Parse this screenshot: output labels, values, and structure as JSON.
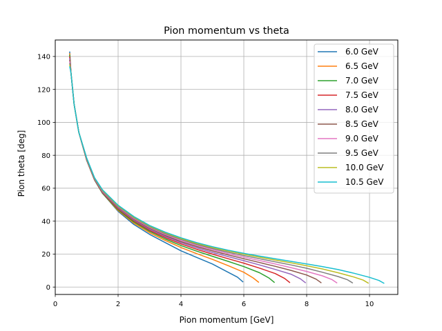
{
  "chart_data": {
    "type": "line",
    "title": "Pion momentum vs theta",
    "xlabel": "Pion momentum [GeV]",
    "ylabel": "Pion theta [deg]",
    "xlim": [
      0,
      10.9
    ],
    "ylim": [
      -4.5,
      150
    ],
    "xticks": [
      0,
      2,
      4,
      6,
      8,
      10
    ],
    "yticks": [
      0,
      20,
      40,
      60,
      80,
      100,
      120,
      140
    ],
    "grid": true,
    "legend_position": "top-right",
    "series": [
      {
        "name": "6.0 GeV",
        "color": "#1f77b4",
        "x": [
          0.46,
          0.5,
          0.6,
          0.75,
          1.0,
          1.25,
          1.5,
          2.0,
          2.5,
          3.0,
          3.5,
          4.0,
          4.5,
          5.0,
          5.5,
          5.8,
          5.98
        ],
        "y": [
          143,
          130,
          111,
          94,
          77,
          65,
          57,
          46,
          38,
          32,
          27,
          22,
          18,
          14,
          9,
          6,
          3
        ]
      },
      {
        "name": "6.5 GeV",
        "color": "#ff7f0e",
        "x": [
          0.46,
          0.5,
          0.6,
          0.75,
          1.0,
          1.25,
          1.5,
          2.0,
          2.5,
          3.0,
          3.5,
          4.0,
          4.5,
          5.0,
          5.5,
          6.0,
          6.3,
          6.48
        ],
        "y": [
          142,
          130,
          111,
          94,
          77,
          65,
          57,
          46.5,
          38.8,
          33,
          28.3,
          24,
          20.3,
          16.8,
          13,
          9,
          5.5,
          2.8
        ]
      },
      {
        "name": "7.0 GeV",
        "color": "#2ca02c",
        "x": [
          0.46,
          0.5,
          0.6,
          0.75,
          1.0,
          1.25,
          1.5,
          2.0,
          2.5,
          3.0,
          3.5,
          4.0,
          4.5,
          5.0,
          5.5,
          6.0,
          6.5,
          6.8,
          6.98
        ],
        "y": [
          141,
          130,
          111,
          94,
          77,
          65,
          57,
          47,
          39.5,
          33.8,
          29.2,
          25.2,
          21.8,
          18.7,
          15.6,
          12.4,
          8.7,
          5.5,
          2.7
        ]
      },
      {
        "name": "7.5 GeV",
        "color": "#d62728",
        "x": [
          0.46,
          0.5,
          0.6,
          0.75,
          1.0,
          1.25,
          1.5,
          2.0,
          2.5,
          3.0,
          3.5,
          4.0,
          4.5,
          5.0,
          5.5,
          6.0,
          6.5,
          7.0,
          7.3,
          7.47
        ],
        "y": [
          140,
          130,
          111,
          94,
          77.2,
          65.2,
          57.3,
          47.5,
          40.2,
          34.5,
          30,
          26.2,
          22.9,
          20,
          17.2,
          14.5,
          11.5,
          8.2,
          5.2,
          2.6
        ]
      },
      {
        "name": "8.0 GeV",
        "color": "#9467bd",
        "x": [
          0.46,
          0.5,
          0.6,
          0.75,
          1.0,
          1.25,
          1.5,
          2.0,
          2.5,
          3.0,
          3.5,
          4.0,
          4.5,
          5.0,
          5.5,
          6.0,
          6.5,
          7.0,
          7.5,
          7.8,
          7.97
        ],
        "y": [
          139,
          130,
          111,
          94,
          77.4,
          65.4,
          57.6,
          47.9,
          40.7,
          35.1,
          30.7,
          27,
          23.8,
          21,
          18.5,
          16,
          13.4,
          10.7,
          7.8,
          5,
          2.5
        ]
      },
      {
        "name": "8.5 GeV",
        "color": "#8c564b",
        "x": [
          0.46,
          0.5,
          0.6,
          0.75,
          1.0,
          1.25,
          1.5,
          2.0,
          2.5,
          3.0,
          3.5,
          4.0,
          4.5,
          5.0,
          5.5,
          6.0,
          6.5,
          7.0,
          7.5,
          8.0,
          8.3,
          8.47
        ],
        "y": [
          138,
          130,
          111,
          94,
          77.6,
          65.6,
          57.9,
          48.3,
          41.2,
          35.7,
          31.3,
          27.6,
          24.6,
          21.9,
          19.5,
          17.2,
          14.9,
          12.6,
          10.1,
          7.3,
          4.8,
          2.5
        ]
      },
      {
        "name": "9.0 GeV",
        "color": "#e377c2",
        "x": [
          0.46,
          0.5,
          0.6,
          0.75,
          1.0,
          1.25,
          1.5,
          2.0,
          2.5,
          3.0,
          3.5,
          4.0,
          4.5,
          5.0,
          5.5,
          6.0,
          6.5,
          7.0,
          7.5,
          8.0,
          8.5,
          8.8,
          8.97
        ],
        "y": [
          137,
          130,
          111,
          94,
          77.8,
          65.8,
          58.2,
          48.7,
          41.6,
          36.2,
          31.9,
          28.3,
          25.3,
          22.7,
          20.3,
          18.2,
          16.1,
          14,
          11.8,
          9.5,
          6.8,
          4.6,
          2.4
        ]
      },
      {
        "name": "9.5 GeV",
        "color": "#7f7f7f",
        "x": [
          0.46,
          0.5,
          0.6,
          0.75,
          1.0,
          1.25,
          1.5,
          2.0,
          2.5,
          3.0,
          3.5,
          4.0,
          4.5,
          5.0,
          5.5,
          6.0,
          6.5,
          7.0,
          7.5,
          8.0,
          8.5,
          9.0,
          9.3,
          9.47
        ],
        "y": [
          136,
          130,
          111,
          94,
          78,
          66,
          58.5,
          49,
          42,
          36.6,
          32.4,
          28.9,
          25.9,
          23.4,
          21.1,
          19.1,
          17.2,
          15.3,
          13.4,
          11.4,
          9,
          6.4,
          4.4,
          2.4
        ]
      },
      {
        "name": "10.0 GeV",
        "color": "#bcbd22",
        "x": [
          0.46,
          0.5,
          0.6,
          0.75,
          1.0,
          1.25,
          1.5,
          2.0,
          2.5,
          3.0,
          3.5,
          4.0,
          4.5,
          5.0,
          5.5,
          6.0,
          6.5,
          7.0,
          7.5,
          8.0,
          8.5,
          9.0,
          9.5,
          9.8,
          9.97
        ],
        "y": [
          135,
          130,
          111,
          94,
          78.2,
          66.2,
          58.8,
          49.3,
          42.4,
          37,
          32.9,
          29.4,
          26.5,
          24,
          21.8,
          19.9,
          18.1,
          16.4,
          14.7,
          12.9,
          11,
          8.7,
          6.1,
          4.2,
          2.3
        ]
      },
      {
        "name": "10.5 GeV",
        "color": "#17becf",
        "x": [
          0.46,
          0.5,
          0.6,
          0.75,
          1.0,
          1.25,
          1.5,
          2.0,
          2.5,
          3.0,
          3.5,
          4.0,
          4.5,
          5.0,
          5.5,
          6.0,
          6.5,
          7.0,
          7.5,
          8.0,
          8.5,
          9.0,
          9.5,
          10.0,
          10.3,
          10.47
        ],
        "y": [
          134,
          130,
          111,
          94,
          78.4,
          66.4,
          59.1,
          49.7,
          42.8,
          37.4,
          33.3,
          29.9,
          27,
          24.5,
          22.4,
          20.5,
          18.8,
          17.2,
          15.6,
          14,
          12.4,
          10.6,
          8.4,
          5.9,
          4,
          2.2
        ]
      }
    ]
  }
}
